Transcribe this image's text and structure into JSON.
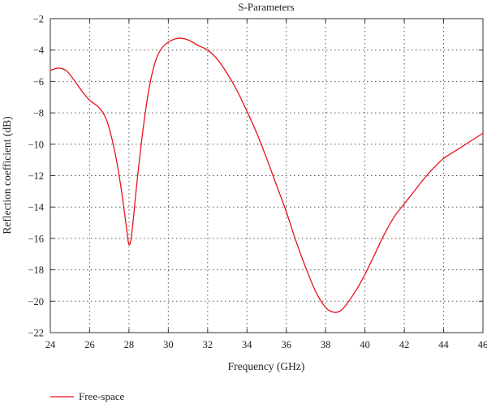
{
  "chart_data": {
    "type": "line",
    "title": "S-Parameters",
    "xlabel": "Frequency (GHz)",
    "ylabel": "Reflection coefficient (dB)",
    "xlim": [
      24,
      46
    ],
    "ylim": [
      -22,
      -2
    ],
    "x_ticks": [
      24,
      26,
      28,
      30,
      32,
      34,
      36,
      38,
      40,
      42,
      44,
      46
    ],
    "y_ticks": [
      -2,
      -4,
      -6,
      -8,
      -10,
      -12,
      -14,
      -16,
      -18,
      -20,
      -22
    ],
    "x_tick_labels": [
      "24",
      "26",
      "28",
      "30",
      "32",
      "34",
      "36",
      "38",
      "40",
      "42",
      "44",
      "46"
    ],
    "y_tick_labels": [
      "−2",
      "−4",
      "−6",
      "−8",
      "−10",
      "−12",
      "−14",
      "−16",
      "−18",
      "−20",
      "−22"
    ],
    "grid": true,
    "legend_position": "bottom-left",
    "series": [
      {
        "name": "Free-space",
        "color": "#e8121a",
        "x": [
          24.0,
          24.4,
          24.8,
          25.2,
          25.6,
          26.0,
          26.5,
          26.9,
          27.3,
          27.6,
          27.85,
          28.0,
          28.15,
          28.4,
          28.7,
          29.0,
          29.3,
          29.6,
          30.0,
          30.5,
          31.0,
          31.5,
          32.0,
          32.5,
          33.0,
          33.5,
          34.0,
          34.5,
          35.0,
          35.5,
          36.0,
          36.5,
          37.0,
          37.5,
          38.0,
          38.4,
          38.7,
          39.0,
          39.5,
          40.0,
          40.5,
          41.0,
          41.5,
          42.0,
          42.5,
          43.0,
          43.5,
          44.0,
          44.5,
          45.0,
          45.5,
          46.0
        ],
        "y": [
          -5.3,
          -5.15,
          -5.3,
          -5.9,
          -6.6,
          -7.2,
          -7.7,
          -8.6,
          -10.6,
          -12.8,
          -15.1,
          -16.4,
          -15.6,
          -12.5,
          -9.2,
          -6.6,
          -4.9,
          -4.0,
          -3.5,
          -3.25,
          -3.35,
          -3.7,
          -4.0,
          -4.6,
          -5.5,
          -6.6,
          -7.9,
          -9.3,
          -10.9,
          -12.6,
          -14.3,
          -16.2,
          -17.9,
          -19.4,
          -20.4,
          -20.7,
          -20.65,
          -20.3,
          -19.4,
          -18.3,
          -17.0,
          -15.7,
          -14.6,
          -13.8,
          -13.0,
          -12.2,
          -11.5,
          -10.9,
          -10.5,
          -10.1,
          -9.7,
          -9.3
        ]
      }
    ]
  }
}
